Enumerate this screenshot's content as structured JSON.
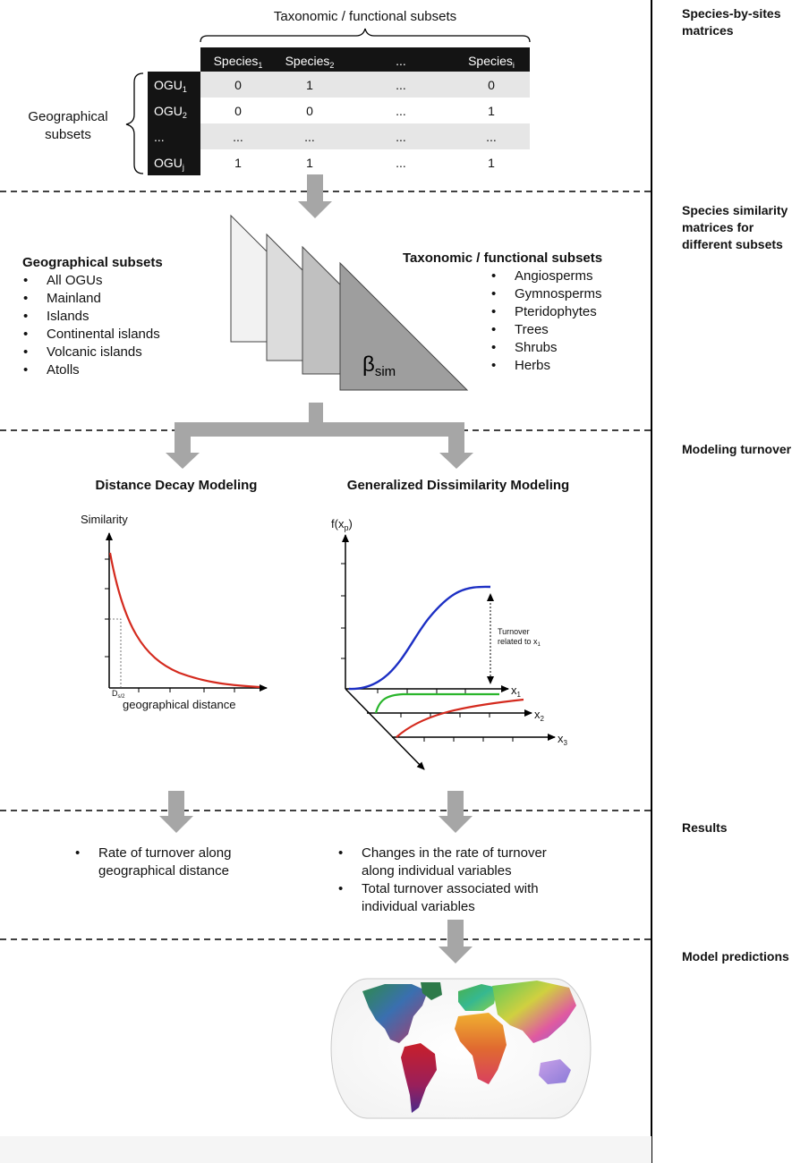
{
  "sections": {
    "s1": "Species-by-sites",
    "s1b": "matrices",
    "s2": "Species similarity",
    "s2b": "matrices for",
    "s2c": "different subsets",
    "s3": "Modeling turnover",
    "s4": "Results",
    "s5": "Model predictions"
  },
  "matrix": {
    "top_brace": "Taxonomic / functional subsets",
    "left_brace_1": "Geographical",
    "left_brace_2": "subsets",
    "columns": [
      "Species",
      "Species",
      "...",
      "Species"
    ],
    "column_subs": [
      "1",
      "2",
      "",
      "i"
    ],
    "row_labels": [
      "OGU",
      "OGU",
      "...",
      "OGU"
    ],
    "row_subs": [
      "1",
      "2",
      "",
      "j"
    ],
    "cells": [
      [
        "0",
        "1",
        "...",
        "0"
      ],
      [
        "0",
        "0",
        "...",
        "1"
      ],
      [
        "...",
        "...",
        "...",
        "..."
      ],
      [
        "1",
        "1",
        "...",
        "1"
      ]
    ]
  },
  "geo_subsets": {
    "title": "Geographical subsets",
    "items": [
      "All OGUs",
      "Mainland",
      "Islands",
      "Continental islands",
      "Volcanic islands",
      "Atolls"
    ]
  },
  "tax_subsets": {
    "title": "Taxonomic / functional subsets",
    "items": [
      "Angiosperms",
      "Gymnosperms",
      "Pteridophytes",
      "Trees",
      "Shrubs",
      "Herbs"
    ]
  },
  "beta": {
    "symbol": "β",
    "sub": "sim"
  },
  "ddm": {
    "title": "Distance Decay Modeling",
    "ylabel": "Similarity",
    "xlabel": "geographical distance",
    "dmark": "D",
    "dmark_sub": "s/2"
  },
  "gdm": {
    "title": "Generalized Dissimilarity Modeling",
    "ylabel": "f(x",
    "ylabel_sub": "p",
    "ylabel_end": ")",
    "turnover_1": "Turnover",
    "turnover_2": "related to x",
    "turnover_sub": "1",
    "x1": "x",
    "x1_sub": "1",
    "x2": "x",
    "x2_sub": "2",
    "x3": "x",
    "x3_sub": "3"
  },
  "results": {
    "left": [
      "Rate of turnover along",
      "geographical distance"
    ],
    "right_1": [
      "Changes in the rate of turnover",
      "along individual variables"
    ],
    "right_2": [
      "Total turnover associated with",
      "individual variables"
    ]
  },
  "colors": {
    "table_header": "#141414",
    "row_shade": "#e6e6e6",
    "arrow_gray": "#a6a6a6",
    "ddm_curve": "#d42a1e",
    "gdm_blue": "#1c2fc4",
    "gdm_green": "#29b52b",
    "gdm_red": "#d42a1e"
  }
}
